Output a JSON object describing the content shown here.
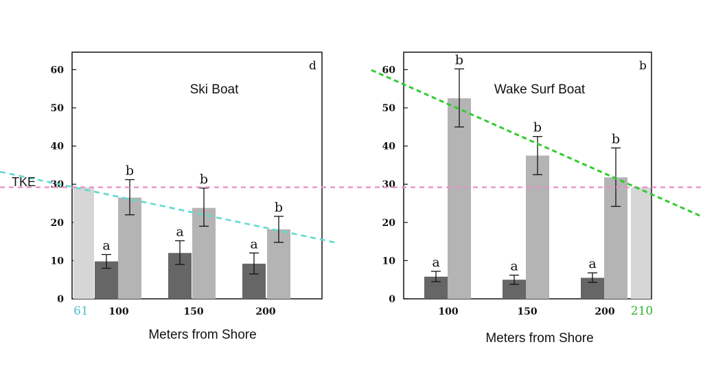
{
  "tke_label": "TKE",
  "colors": {
    "dark_bar": "#666666",
    "light_bar": "#b4b4b4",
    "end_bar": "#d6d6d6",
    "tke_line": "#e98dc4",
    "ski_trend": "#5fd9d0",
    "wake_trend": "#2fcc2f",
    "ski_end_label": "#4fbfc9",
    "wake_end_label": "#2ab52a"
  },
  "chart_data": [
    {
      "type": "bar",
      "title": "Ski Boat",
      "corner_label": "d",
      "xlabel": "Meters from Shore",
      "ylabel": "",
      "ylim": [
        0,
        65
      ],
      "yticks": [
        "0",
        "10",
        "20",
        "30",
        "40",
        "50",
        "60"
      ],
      "categories": [
        "100",
        "150",
        "200"
      ],
      "series": [
        {
          "values": [
            9.8,
            12.0,
            9.2
          ],
          "err_low": [
            8.0,
            9.0,
            6.5
          ],
          "err_high": [
            11.6,
            15.2,
            12.0
          ],
          "labels": [
            "a",
            "a",
            "a"
          ],
          "color": "dark"
        },
        {
          "values": [
            26.5,
            23.8,
            18.2
          ],
          "err_low": [
            22.0,
            19.0,
            14.8
          ],
          "err_high": [
            31.2,
            29.0,
            21.6
          ],
          "labels": [
            "b",
            "b",
            "b"
          ],
          "color": "light"
        }
      ],
      "end_bar": {
        "label": "61",
        "value": 29.2,
        "side": "left"
      },
      "trend_line": {
        "from_x": "61",
        "from_y": 33,
        "to_x": "220",
        "to_y": 14.5
      },
      "tke_level": 29.2
    },
    {
      "type": "bar",
      "title": "Wake Surf Boat",
      "corner_label": "b",
      "xlabel": "Meters from Shore",
      "ylabel": "",
      "ylim": [
        0,
        65
      ],
      "yticks": [
        "0",
        "10",
        "20",
        "30",
        "40",
        "50",
        "60"
      ],
      "categories": [
        "100",
        "150",
        "200"
      ],
      "series": [
        {
          "values": [
            5.8,
            5.0,
            5.5
          ],
          "err_low": [
            4.5,
            3.8,
            4.3
          ],
          "err_high": [
            7.2,
            6.2,
            6.8
          ],
          "labels": [
            "a",
            "a",
            "a"
          ],
          "color": "dark"
        },
        {
          "values": [
            52.5,
            37.5,
            31.8
          ],
          "err_low": [
            45.0,
            32.5,
            24.2
          ],
          "err_high": [
            60.2,
            42.5,
            39.5
          ],
          "labels": [
            "b",
            "b",
            "b"
          ],
          "color": "light"
        }
      ],
      "end_bar": {
        "label": "210",
        "value": 29.2,
        "side": "right"
      },
      "trend_line": {
        "from_x": "80",
        "from_y": 60,
        "to_x": "210",
        "to_y": 29.2
      },
      "tke_level": 29.2
    }
  ]
}
